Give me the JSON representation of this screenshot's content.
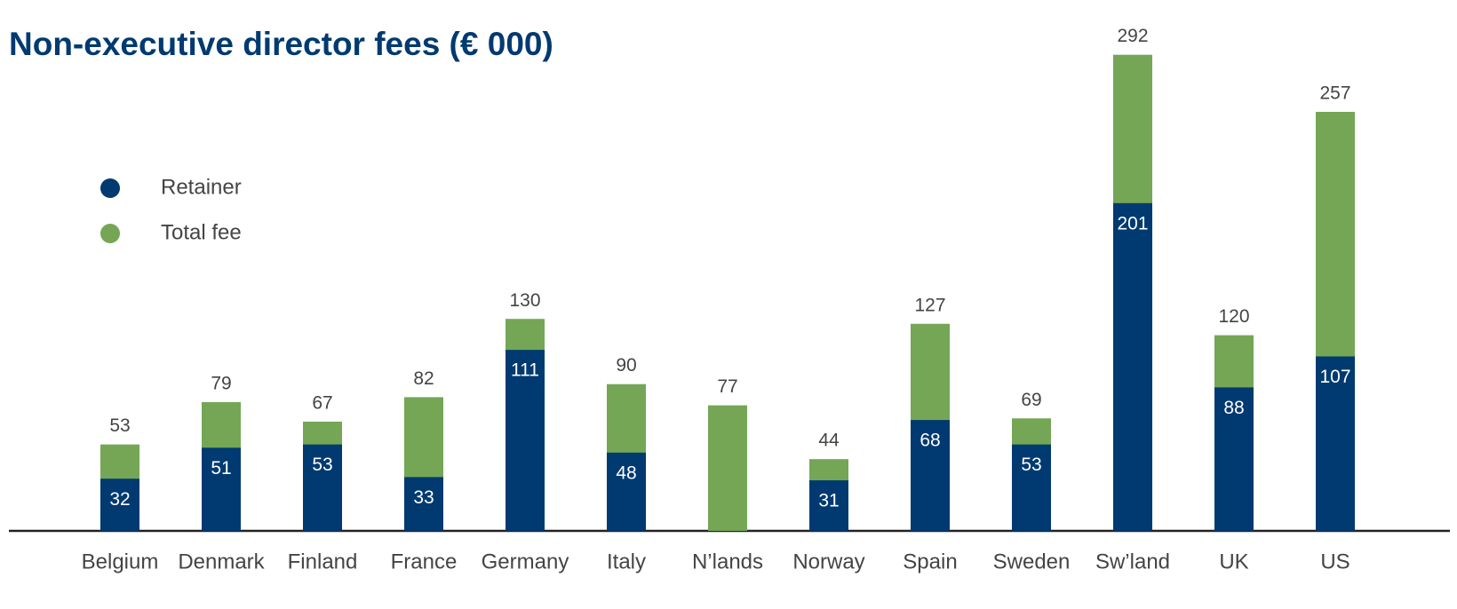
{
  "chart_data": {
    "type": "bar",
    "title": "Non-executive director fees (€ 000)",
    "categories": [
      "Belgium",
      "Denmark",
      "Finland",
      "France",
      "Germany",
      "Italy",
      "N’lands",
      "Norway",
      "Spain",
      "Sweden",
      "Sw’land",
      "UK",
      "US"
    ],
    "series": [
      {
        "name": "Total fee",
        "color": "#74a656",
        "values": [
          53,
          79,
          67,
          82,
          130,
          90,
          77,
          44,
          127,
          69,
          292,
          120,
          257
        ]
      },
      {
        "name": "Retainer",
        "color": "#003a70",
        "values": [
          32,
          51,
          53,
          33,
          111,
          48,
          null,
          31,
          68,
          53,
          201,
          88,
          107
        ]
      }
    ],
    "ylim": [
      0,
      300
    ]
  }
}
